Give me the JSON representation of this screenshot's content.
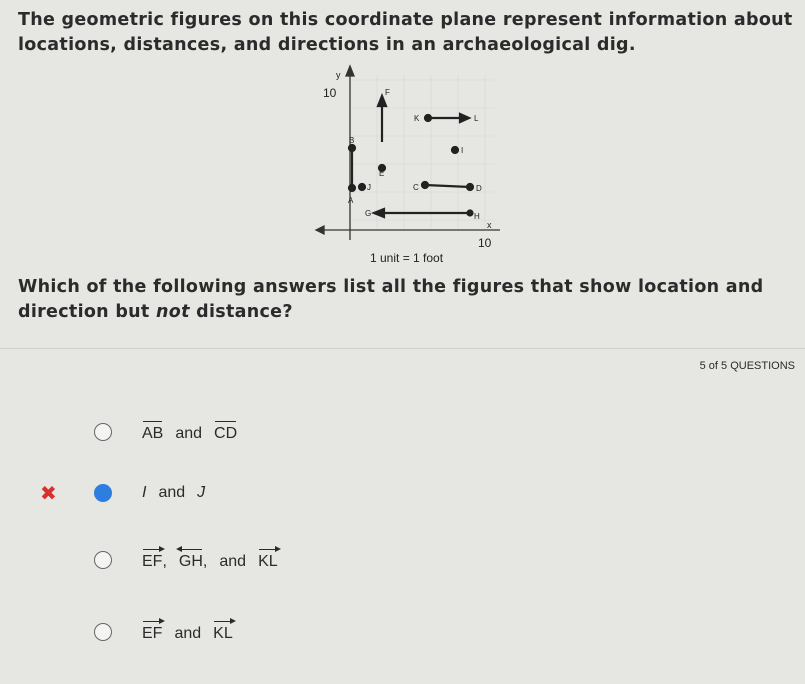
{
  "intro": "The geometric figures on this coordinate plane represent information about locations, distances, and directions in an archaeological dig.",
  "diagram": {
    "y_axis_label": "y",
    "x_axis_label": "x",
    "y_max_label": "10",
    "x_max_label": "10",
    "labels": [
      "F",
      "K",
      "L",
      "B",
      "I",
      "E",
      "J",
      "C",
      "D",
      "A",
      "G",
      "H"
    ],
    "scale_note": "1 unit = 1 foot"
  },
  "question": [
    "Which of the following answers list all the figures that show location and direction but ",
    "not",
    " distance?"
  ],
  "progress": "5 of 5 QUESTIONS",
  "options": [
    {
      "parts": [
        {
          "text": "AB",
          "notation": "segment"
        },
        {
          "text": "and"
        },
        {
          "text": "CD",
          "notation": "segment"
        }
      ]
    },
    {
      "selected": true,
      "incorrect": true,
      "parts": [
        {
          "text": "I",
          "italic": true
        },
        {
          "text": "and"
        },
        {
          "text": "J",
          "italic": true
        }
      ]
    },
    {
      "parts": [
        {
          "text": "EF",
          "notation": "ray"
        },
        {
          "text": ","
        },
        {
          "text": "GH",
          "notation": "ray-left"
        },
        {
          "text": ","
        },
        {
          "text": "and"
        },
        {
          "text": "KL",
          "notation": "ray"
        }
      ]
    },
    {
      "parts": [
        {
          "text": "EF",
          "notation": "ray"
        },
        {
          "text": "and"
        },
        {
          "text": "KL",
          "notation": "ray"
        }
      ]
    }
  ]
}
